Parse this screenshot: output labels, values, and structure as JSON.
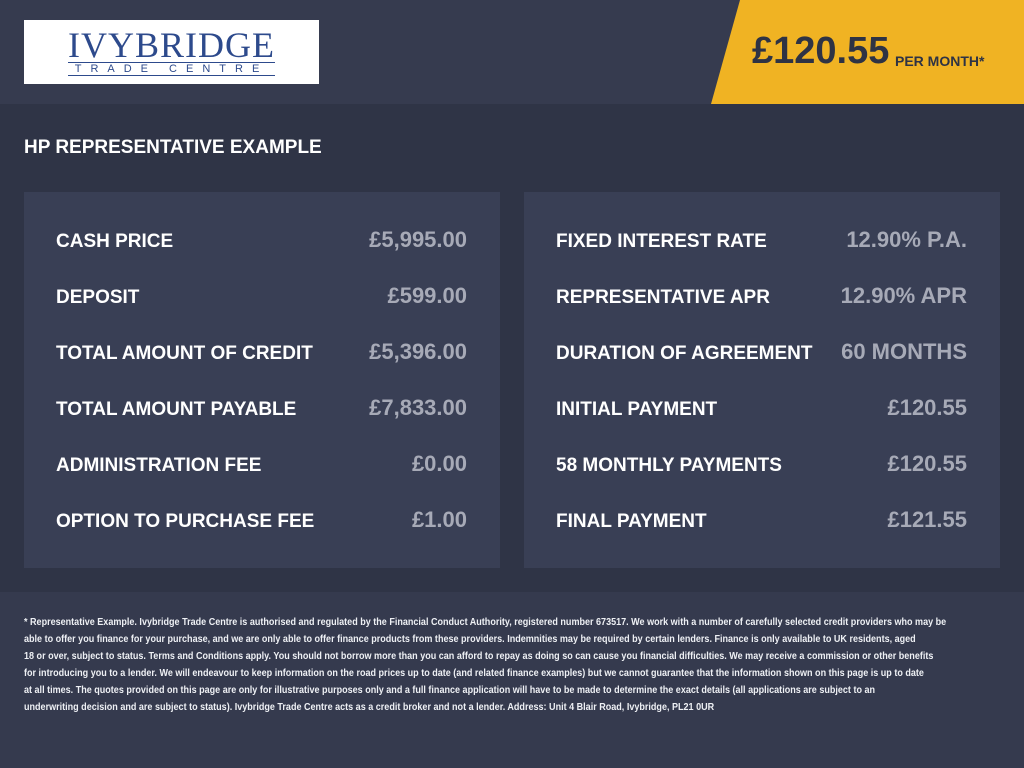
{
  "logo": {
    "name": "IVYBRIDGE",
    "tagline": "TRADE CENTRE"
  },
  "price_badge": {
    "amount": "£120.55",
    "period": "PER MONTH*"
  },
  "section_title": "HP REPRESENTATIVE EXAMPLE",
  "left_panel": {
    "rows": [
      {
        "label": "CASH PRICE",
        "value": "£5,995.00"
      },
      {
        "label": "DEPOSIT",
        "value": "£599.00"
      },
      {
        "label": "TOTAL AMOUNT OF CREDIT",
        "value": "£5,396.00"
      },
      {
        "label": "TOTAL AMOUNT PAYABLE",
        "value": "£7,833.00"
      },
      {
        "label": "ADMINISTRATION FEE",
        "value": "£0.00"
      },
      {
        "label": "OPTION TO PURCHASE FEE",
        "value": "£1.00"
      }
    ]
  },
  "right_panel": {
    "rows": [
      {
        "label": "FIXED INTEREST RATE",
        "value": "12.90% P.A."
      },
      {
        "label": "REPRESENTATIVE APR",
        "value": "12.90% APR"
      },
      {
        "label": "DURATION OF AGREEMENT",
        "value": "60 MONTHS"
      },
      {
        "label": "INITIAL PAYMENT",
        "value": "£120.55"
      },
      {
        "label": "58 MONTHLY PAYMENTS",
        "value": "£120.55"
      },
      {
        "label": "FINAL PAYMENT",
        "value": "£121.55"
      }
    ]
  },
  "disclaimer": {
    "lines": [
      "* Representative Example. Ivybridge Trade Centre is authorised and regulated by the Financial Conduct Authority, registered number 673517. We work with a number of carefully selected credit providers who may be",
      "able to offer you finance for your purchase, and we are only able to offer finance products from these providers. Indemnities may be required by certain lenders. Finance is only available to UK residents, aged",
      "18 or over, subject to status. Terms and Conditions apply. You should not borrow more than you can afford to repay as doing so can cause you financial difficulties. We may receive a commission or other benefits",
      "for introducing you to a lender. We will endeavour to keep information on the road prices up to date (and related finance examples) but we cannot guarantee that the information shown on this page is up to date",
      "at all times. The quotes provided on this page are only for illustrative purposes only and a full finance application will have to be made to determine the exact details (all applications are subject to an",
      "underwriting decision and are subject to status). Ivybridge Trade Centre acts as a credit broker and not a lender. Address: Unit 4 Blair Road, Ivybridge, PL21 0UR"
    ]
  }
}
